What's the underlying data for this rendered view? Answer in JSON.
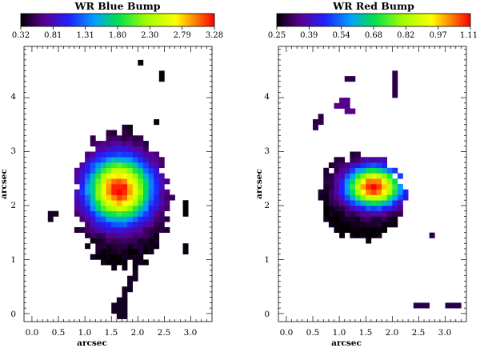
{
  "chart_data": [
    {
      "type": "heatmap",
      "title": "WR Blue Bump",
      "colorbar": {
        "range": [
          0.32,
          3.28
        ],
        "tick_labels": [
          "0.32",
          "0.81",
          "1.31",
          "1.80",
          "2.30",
          "2.79",
          "3.28"
        ],
        "colormap": "rainbow"
      },
      "xlabel": "arcsec",
      "ylabel": "arcsec",
      "xlim": [
        -0.15,
        3.4
      ],
      "ylim": [
        -0.15,
        4.95
      ],
      "x_ticks": [
        "0.0",
        "0.5",
        "1.0",
        "1.5",
        "2.0",
        "2.5",
        "3.0"
      ],
      "y_ticks": [
        "0",
        "1",
        "2",
        "3",
        "4"
      ],
      "pixel_size": 0.1,
      "peak": {
        "x": 1.65,
        "y": 2.3,
        "value": 3.28
      },
      "emission_region": {
        "x_range": [
          0.8,
          2.6
        ],
        "y_range": [
          0.85,
          3.45
        ]
      },
      "isolated_pixels": [
        {
          "x": 2.05,
          "y": 4.65,
          "value": 0.35
        },
        {
          "x": 2.45,
          "y": 4.45,
          "value": 0.35
        },
        {
          "x": 2.45,
          "y": 4.35,
          "value": 0.35
        },
        {
          "x": 2.35,
          "y": 3.55,
          "value": 0.35
        },
        {
          "x": 0.35,
          "y": 1.85,
          "value": 0.4
        },
        {
          "x": 0.45,
          "y": 1.85,
          "value": 0.4
        },
        {
          "x": 0.35,
          "y": 1.75,
          "value": 0.4
        },
        {
          "x": 2.9,
          "y": 2.05,
          "value": 0.35
        },
        {
          "x": 2.9,
          "y": 1.95,
          "value": 0.35
        },
        {
          "x": 2.9,
          "y": 1.85,
          "value": 0.35
        },
        {
          "x": 2.9,
          "y": 1.25,
          "value": 0.35
        },
        {
          "x": 2.9,
          "y": 1.15,
          "value": 0.35
        },
        {
          "x": 1.95,
          "y": 0.75,
          "value": 0.4
        },
        {
          "x": 1.85,
          "y": 0.65,
          "value": 0.4
        },
        {
          "x": 1.95,
          "y": 0.65,
          "value": 0.4
        },
        {
          "x": 1.85,
          "y": 0.55,
          "value": 0.4
        },
        {
          "x": 1.75,
          "y": 0.45,
          "value": 0.4
        },
        {
          "x": 1.85,
          "y": 0.45,
          "value": 0.4
        },
        {
          "x": 1.75,
          "y": 0.35,
          "value": 0.4
        },
        {
          "x": 1.65,
          "y": 0.25,
          "value": 0.4
        },
        {
          "x": 1.75,
          "y": 0.25,
          "value": 0.4
        },
        {
          "x": 1.55,
          "y": 0.15,
          "value": 0.4
        },
        {
          "x": 1.65,
          "y": 0.15,
          "value": 0.4
        },
        {
          "x": 1.75,
          "y": 0.15,
          "value": 0.4
        },
        {
          "x": 1.55,
          "y": 0.05,
          "value": 0.4
        },
        {
          "x": 1.65,
          "y": 0.05,
          "value": 0.4
        },
        {
          "x": 1.75,
          "y": 0.05,
          "value": 0.4
        },
        {
          "x": 1.65,
          "y": -0.05,
          "value": 0.4
        },
        {
          "x": 1.75,
          "y": -0.05,
          "value": 0.4
        }
      ]
    },
    {
      "type": "heatmap",
      "title": "WR Red Bump",
      "colorbar": {
        "range": [
          0.25,
          1.11
        ],
        "tick_labels": [
          "0.25",
          "0.39",
          "0.54",
          "0.68",
          "0.82",
          "0.97",
          "1.11"
        ],
        "colormap": "rainbow"
      },
      "xlabel": "arcsec",
      "ylabel": "arcsec",
      "xlim": [
        -0.15,
        3.4
      ],
      "ylim": [
        -0.15,
        4.95
      ],
      "x_ticks": [
        "0.0",
        "0.5",
        "1.0",
        "1.5",
        "2.0",
        "2.5",
        "3.0"
      ],
      "y_ticks": [
        "0",
        "1",
        "2",
        "3",
        "4"
      ],
      "pixel_size": 0.1,
      "peak": {
        "x": 1.65,
        "y": 2.35,
        "value": 1.11
      },
      "emission_region": {
        "x_range": [
          0.65,
          2.25
        ],
        "y_range": [
          1.35,
          2.95
        ]
      },
      "isolated_pixels": [
        {
          "x": 1.15,
          "y": 4.35,
          "value": 0.3
        },
        {
          "x": 1.25,
          "y": 4.35,
          "value": 0.3
        },
        {
          "x": 2.05,
          "y": 4.45,
          "value": 0.3
        },
        {
          "x": 2.05,
          "y": 4.35,
          "value": 0.3
        },
        {
          "x": 2.05,
          "y": 4.25,
          "value": 0.3
        },
        {
          "x": 2.05,
          "y": 4.15,
          "value": 0.3
        },
        {
          "x": 2.05,
          "y": 4.05,
          "value": 0.3
        },
        {
          "x": 1.05,
          "y": 3.95,
          "value": 0.35
        },
        {
          "x": 1.15,
          "y": 3.95,
          "value": 0.35
        },
        {
          "x": 0.95,
          "y": 3.85,
          "value": 0.35
        },
        {
          "x": 1.05,
          "y": 3.85,
          "value": 0.35
        },
        {
          "x": 1.15,
          "y": 3.85,
          "value": 0.35
        },
        {
          "x": 1.25,
          "y": 3.75,
          "value": 0.35
        },
        {
          "x": 1.15,
          "y": 3.75,
          "value": 0.35
        },
        {
          "x": 0.65,
          "y": 3.65,
          "value": 0.3
        },
        {
          "x": 0.65,
          "y": 3.55,
          "value": 0.3
        },
        {
          "x": 0.55,
          "y": 3.55,
          "value": 0.3
        },
        {
          "x": 0.55,
          "y": 3.45,
          "value": 0.3
        },
        {
          "x": 2.75,
          "y": 1.45,
          "value": 0.3
        },
        {
          "x": 2.45,
          "y": 0.15,
          "value": 0.3
        },
        {
          "x": 2.55,
          "y": 0.15,
          "value": 0.3
        },
        {
          "x": 2.65,
          "y": 0.15,
          "value": 0.3
        },
        {
          "x": 3.05,
          "y": 0.15,
          "value": 0.3
        },
        {
          "x": 3.15,
          "y": 0.15,
          "value": 0.3
        },
        {
          "x": 3.25,
          "y": 0.15,
          "value": 0.3
        }
      ]
    }
  ]
}
